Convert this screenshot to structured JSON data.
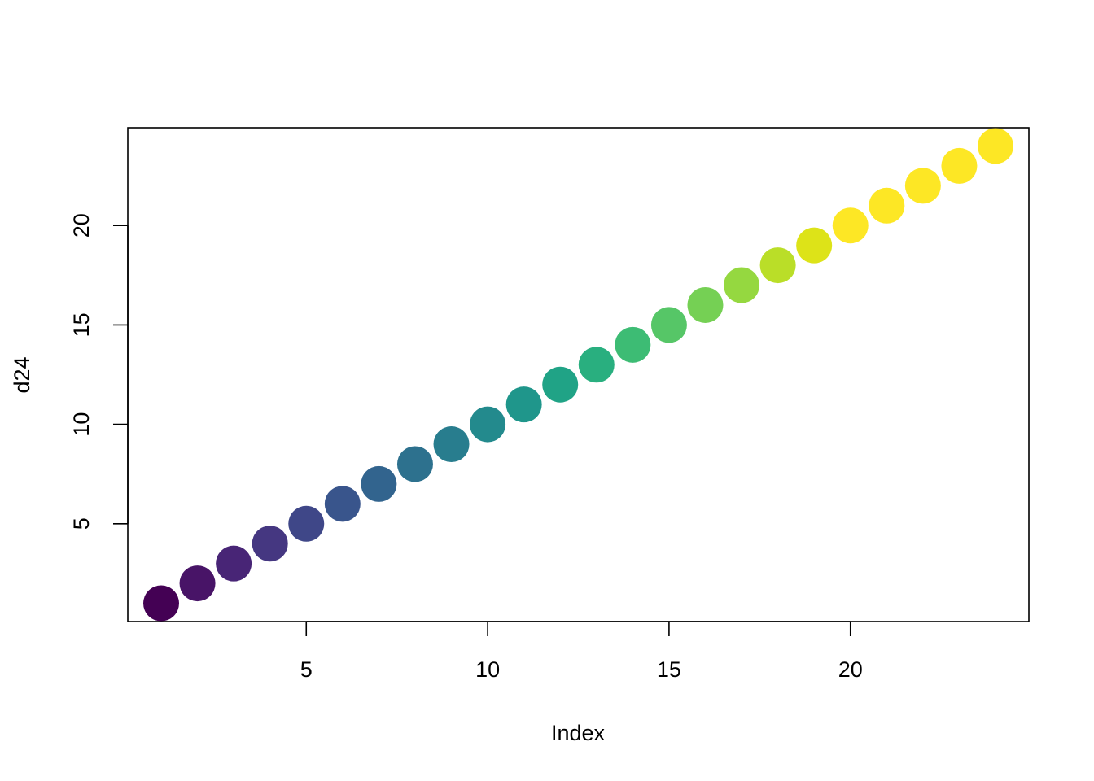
{
  "chart_data": {
    "type": "scatter",
    "title": "",
    "xlabel": "Index",
    "ylabel": "d24",
    "x": [
      1,
      2,
      3,
      4,
      5,
      6,
      7,
      8,
      9,
      10,
      11,
      12,
      13,
      14,
      15,
      16,
      17,
      18,
      19,
      20,
      21,
      22,
      23,
      24
    ],
    "y": [
      1,
      2,
      3,
      4,
      5,
      6,
      7,
      8,
      9,
      10,
      11,
      12,
      13,
      14,
      15,
      16,
      17,
      18,
      19,
      20,
      21,
      22,
      23,
      24
    ],
    "colors": [
      "#440154",
      "#481467",
      "#482576",
      "#453781",
      "#3F4788",
      "#39558C",
      "#32648E",
      "#2D718E",
      "#287D8E",
      "#238A8D",
      "#1F968B",
      "#20A386",
      "#29AF7F",
      "#3DBC74",
      "#56C667",
      "#75D054",
      "#95D840",
      "#BADE28",
      "#DDE318",
      "#FDE725",
      "#FDE725",
      "#FDE725",
      "#FDE725",
      "#FDE725"
    ],
    "xlim": [
      0.08,
      24.92
    ],
    "ylim": [
      0.08,
      24.92
    ],
    "xticks": [
      5,
      10,
      15,
      20
    ],
    "yticks": [
      5,
      10,
      15,
      20
    ],
    "grid": false,
    "legend": false
  }
}
